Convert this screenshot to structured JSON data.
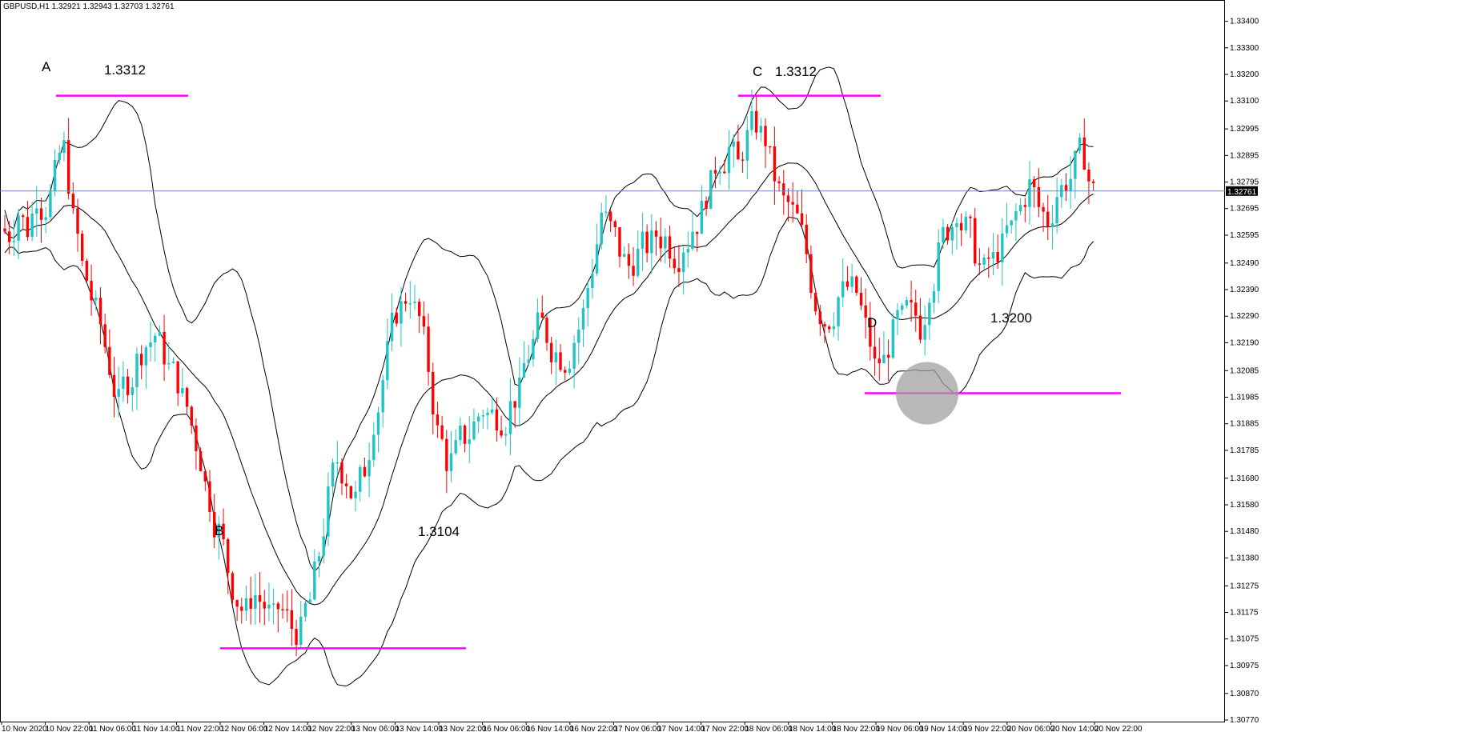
{
  "header": {
    "symbol": "GBPUSD,H1",
    "ohlc": "1.32921 1.32943 1.32703 1.32761"
  },
  "current_price": "1.32761",
  "colors": {
    "bull": "#20c4c4",
    "bear": "#ff0000",
    "annotation_line": "#ff00ff",
    "band": "#000000",
    "price_line": "#6b8fb3",
    "highlight_circle": "#a0a0a0"
  },
  "chart_data": {
    "type": "candlestick",
    "instrument": "GBPUSD",
    "timeframe": "H1",
    "ylim": [
      1.3077,
      1.3345
    ],
    "y_ticks": [
      "1.33400",
      "1.33300",
      "1.33200",
      "1.33100",
      "1.32995",
      "1.32895",
      "1.32795",
      "1.32695",
      "1.32595",
      "1.32490",
      "1.32390",
      "1.32290",
      "1.32190",
      "1.32085",
      "1.31985",
      "1.31885",
      "1.31785",
      "1.31680",
      "1.31580",
      "1.31480",
      "1.31380",
      "1.31275",
      "1.31175",
      "1.31075",
      "1.30975",
      "1.30870",
      "1.30770"
    ],
    "x_ticks": [
      "10 Nov 2020",
      "10 Nov 22:00",
      "11 Nov 06:00",
      "11 Nov 14:00",
      "11 Nov 22:00",
      "12 Nov 06:00",
      "12 Nov 14:00",
      "12 Nov 22:00",
      "13 Nov 06:00",
      "13 Nov 14:00",
      "13 Nov 22:00",
      "16 Nov 06:00",
      "16 Nov 14:00",
      "16 Nov 22:00",
      "17 Nov 06:00",
      "17 Nov 14:00",
      "17 Nov 22:00",
      "18 Nov 06:00",
      "18 Nov 14:00",
      "18 Nov 22:00",
      "19 Nov 06:00",
      "19 Nov 14:00",
      "19 Nov 22:00",
      "20 Nov 06:00",
      "20 Nov 14:00",
      "20 Nov 22:00"
    ],
    "close_path": [
      1.326,
      1.3268,
      1.3262,
      1.3275,
      1.327,
      1.3282,
      1.3292,
      1.3265,
      1.3248,
      1.3236,
      1.3226,
      1.321,
      1.3196,
      1.3205,
      1.3212,
      1.3218,
      1.3222,
      1.3215,
      1.3208,
      1.3198,
      1.3188,
      1.3175,
      1.316,
      1.3148,
      1.3134,
      1.3122,
      1.3118,
      1.3124,
      1.312,
      1.3115,
      1.3118,
      1.3112,
      1.311,
      1.3122,
      1.314,
      1.316,
      1.3175,
      1.3168,
      1.316,
      1.3172,
      1.319,
      1.3205,
      1.3225,
      1.3232,
      1.3238,
      1.3228,
      1.321,
      1.3185,
      1.3175,
      1.3178,
      1.3184,
      1.3188,
      1.3194,
      1.3192,
      1.319,
      1.3195,
      1.32,
      1.3215,
      1.3225,
      1.3222,
      1.3215,
      1.3212,
      1.322,
      1.323,
      1.3248,
      1.3268,
      1.3262,
      1.3254,
      1.3248,
      1.3252,
      1.3256,
      1.326,
      1.3258,
      1.3252,
      1.3256,
      1.3262,
      1.3268,
      1.3278,
      1.3288,
      1.3292,
      1.3286,
      1.3296,
      1.3302,
      1.3296,
      1.3282,
      1.3272,
      1.3268,
      1.326,
      1.3242,
      1.323,
      1.3228,
      1.3236,
      1.324,
      1.3238,
      1.3225,
      1.321,
      1.3212,
      1.3222,
      1.3228,
      1.323,
      1.3225,
      1.324,
      1.3252,
      1.3262,
      1.327,
      1.3262,
      1.3254,
      1.3246,
      1.325,
      1.3255,
      1.3262,
      1.327,
      1.3278,
      1.327,
      1.3265,
      1.3275,
      1.328,
      1.3286,
      1.329,
      1.3276
    ],
    "levels": [
      {
        "label": "A",
        "price": "1.3312"
      },
      {
        "label": "B",
        "price": "1.3104"
      },
      {
        "label": "C",
        "price": "1.3312"
      },
      {
        "label": "D",
        "price": "1.3200"
      }
    ],
    "indicator": "Bollinger Bands",
    "grid": false
  }
}
